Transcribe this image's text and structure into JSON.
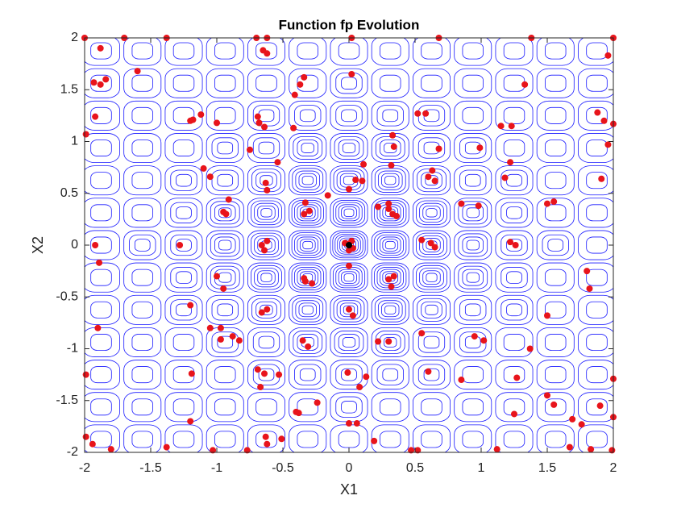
{
  "chart_data": {
    "type": "scatter",
    "title": "Function fp Evolution",
    "x_label": "X1",
    "y_label": "X2",
    "xlim": [
      -2,
      2
    ],
    "ylim": [
      -2,
      2
    ],
    "xticks": [
      -2,
      -1.5,
      -1,
      -0.5,
      0,
      0.5,
      1,
      1.5,
      2
    ],
    "yticks": [
      -2,
      -1.5,
      -1,
      -0.5,
      0,
      0.5,
      1,
      1.5,
      2
    ],
    "contour_color": "#1a1aff",
    "series": [
      {
        "color": "#e8141b",
        "x": [
          -2,
          -1.7,
          -1.38,
          -0.7,
          -0.62,
          0.02,
          0.68,
          1.38,
          2,
          -1.88,
          -0.65,
          -0.62,
          1.96,
          -1.93,
          -1.88,
          -1.84,
          -1.6,
          -0.34,
          -0.37,
          0.02,
          -0.41,
          1.33,
          -1.92,
          -1.2,
          -1.18,
          -1.12,
          -0.69,
          -0.68,
          -0.64,
          -1.0,
          0.52,
          0.58,
          1.15,
          1.23,
          1.88,
          1.93,
          2.0,
          -1.99,
          -0.42,
          0.33,
          0.34,
          -0.75,
          0.68,
          0.99,
          1.96,
          -0.54,
          -1.1,
          -1.05,
          0.11,
          0.32,
          1.22,
          0.63,
          0.6,
          0.65,
          -0.63,
          -0.62,
          0.05,
          0.1,
          0.0,
          -0.16,
          1.18,
          1.91,
          -0.91,
          -0.33,
          -0.3,
          -0.34,
          0.22,
          0.3,
          0.33,
          0.36,
          0.85,
          0.98,
          1.5,
          1.55,
          -0.95,
          -0.93,
          -0.66,
          -0.62,
          -0.64,
          -0.01,
          0.03,
          0.55,
          0.62,
          0.65,
          1.22,
          1.26,
          -1.28,
          -1.92,
          -1.89,
          0.0,
          -1.0,
          -0.95,
          -0.33,
          -0.28,
          0.3,
          0.32,
          1.8,
          1.82,
          -1.2,
          0.0,
          0.03,
          -0.62,
          -0.66,
          1.5,
          -1.9,
          -1.05,
          -0.97,
          -0.35,
          -0.31,
          0.3,
          0.55,
          0.95,
          1.02,
          -0.97,
          -0.88,
          -0.83,
          0.22,
          1.37,
          -1.19,
          -0.69,
          -0.64,
          -0.53,
          -0.01,
          0.13,
          0.6,
          1.27,
          -1.99,
          2.0,
          -0.67,
          0.08,
          0.85,
          1.5,
          -0.4,
          -0.38,
          -0.24,
          0.0,
          0.06,
          1.25,
          1.69,
          1.76,
          1.55,
          1.9,
          -1.2,
          -0.63,
          -0.62,
          -0.51,
          0.19,
          0.47,
          0.52,
          -1.94,
          -1.8,
          -1.38,
          -1.03,
          -0.77,
          1.12,
          1.67,
          1.83,
          1.99,
          -1.99,
          2.0,
          -0.03,
          0.02,
          0.0,
          -0.34,
          0.3,
          0.34
        ],
        "values": [
          2,
          2,
          2,
          2,
          2,
          2,
          2,
          2,
          2,
          1.9,
          1.88,
          1.85,
          1.83,
          1.57,
          1.55,
          1.6,
          1.68,
          1.62,
          1.55,
          1.65,
          1.45,
          1.55,
          1.24,
          1.2,
          1.21,
          1.26,
          1.24,
          1.18,
          1.14,
          1.18,
          1.27,
          1.27,
          1.15,
          1.15,
          1.28,
          1.2,
          1.17,
          1.07,
          1.13,
          1.06,
          0.95,
          0.92,
          0.93,
          0.94,
          0.97,
          0.8,
          0.74,
          0.66,
          0.78,
          0.77,
          0.8,
          0.72,
          0.66,
          0.62,
          0.6,
          0.53,
          0.63,
          0.62,
          0.54,
          0.48,
          0.65,
          0.64,
          0.44,
          0.41,
          0.33,
          0.3,
          0.37,
          0.35,
          0.3,
          0.28,
          0.4,
          0.38,
          0.4,
          0.42,
          0.32,
          0.3,
          0.0,
          0.04,
          -0.05,
          0.01,
          -0.03,
          0.05,
          0.02,
          -0.02,
          0.03,
          0.0,
          0.0,
          0.0,
          -0.17,
          -0.2,
          -0.3,
          -0.42,
          -0.35,
          -0.37,
          -0.33,
          -0.4,
          -0.25,
          -0.42,
          -0.58,
          -0.62,
          -0.68,
          -0.62,
          -0.65,
          -0.68,
          -0.8,
          -0.8,
          -0.8,
          -0.92,
          -0.98,
          -0.93,
          -0.85,
          -0.88,
          -0.92,
          -0.91,
          -0.88,
          -0.92,
          -0.93,
          -1.0,
          -1.24,
          -1.2,
          -1.24,
          -1.25,
          -1.23,
          -1.27,
          -1.22,
          -1.28,
          -1.25,
          -1.29,
          -1.37,
          -1.37,
          -1.3,
          -1.45,
          -1.61,
          -1.62,
          -1.52,
          -1.72,
          -1.72,
          -1.63,
          -1.68,
          -1.73,
          -1.54,
          -1.55,
          -1.7,
          -1.85,
          -1.92,
          -1.87,
          -1.89,
          -1.98,
          -1.98,
          -1.92,
          -1.97,
          -1.95,
          -1.98,
          -1.98,
          -1.97,
          -1.95,
          -1.97,
          -1.98,
          -1.85,
          -1.66,
          0.02,
          0.04,
          -0.05,
          -0.32,
          0.4,
          -0.3
        ]
      },
      {
        "color": "#000000",
        "x": [
          0
        ],
        "values": [
          0
        ]
      }
    ]
  }
}
